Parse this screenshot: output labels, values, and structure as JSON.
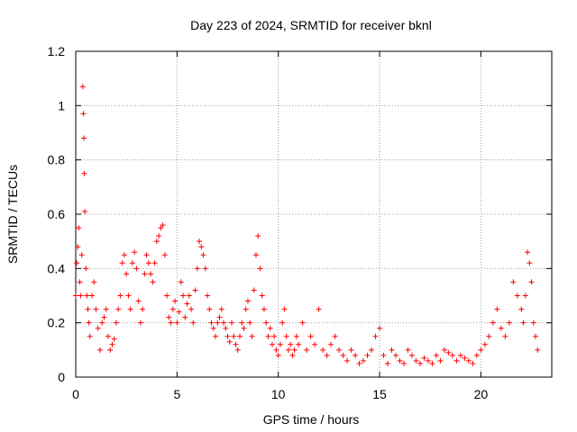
{
  "chart_data": {
    "type": "scatter",
    "title": "Day 223 of 2024, SRMTID for receiver bknl",
    "xlabel": "GPS time / hours",
    "ylabel": "SRMTID / TECUs",
    "xlim": [
      0,
      23.5
    ],
    "ylim": [
      0,
      1.2
    ],
    "x_ticks": [
      0,
      5,
      10,
      15,
      20
    ],
    "y_ticks": [
      0,
      0.2,
      0.4,
      0.6,
      0.8,
      1,
      1.2
    ],
    "x_tick_labels": [
      "0",
      "5",
      "10",
      "15",
      "20"
    ],
    "y_tick_labels": [
      "0",
      "0.2",
      "0.4",
      "0.6",
      "0.8",
      "1",
      "1.2"
    ],
    "grid": true,
    "marker": "+",
    "color": "#ff0000",
    "series": [
      {
        "name": "SRMTID",
        "x": [
          0.0,
          0.05,
          0.1,
          0.15,
          0.2,
          0.25,
          0.3,
          0.35,
          0.38,
          0.4,
          0.42,
          0.45,
          0.5,
          0.55,
          0.6,
          0.65,
          0.7,
          0.8,
          0.9,
          1.0,
          1.1,
          1.2,
          1.3,
          1.4,
          1.5,
          1.6,
          1.7,
          1.8,
          1.9,
          2.0,
          2.1,
          2.2,
          2.3,
          2.4,
          2.5,
          2.6,
          2.7,
          2.8,
          2.9,
          3.0,
          3.1,
          3.2,
          3.3,
          3.4,
          3.5,
          3.6,
          3.7,
          3.8,
          3.9,
          4.0,
          4.1,
          4.2,
          4.3,
          4.4,
          4.5,
          4.6,
          4.7,
          4.8,
          4.9,
          5.0,
          5.1,
          5.2,
          5.3,
          5.4,
          5.5,
          5.6,
          5.7,
          5.8,
          5.9,
          6.0,
          6.1,
          6.2,
          6.3,
          6.4,
          6.5,
          6.6,
          6.7,
          6.8,
          6.9,
          7.0,
          7.1,
          7.2,
          7.3,
          7.4,
          7.5,
          7.6,
          7.7,
          7.8,
          7.9,
          8.0,
          8.1,
          8.2,
          8.3,
          8.4,
          8.5,
          8.6,
          8.7,
          8.8,
          8.9,
          9.0,
          9.1,
          9.2,
          9.3,
          9.4,
          9.5,
          9.6,
          9.7,
          9.8,
          9.9,
          10.0,
          10.1,
          10.2,
          10.3,
          10.4,
          10.5,
          10.6,
          10.7,
          10.8,
          10.9,
          11.0,
          11.2,
          11.4,
          11.6,
          11.8,
          12.0,
          12.2,
          12.4,
          12.6,
          12.8,
          13.0,
          13.2,
          13.4,
          13.6,
          13.8,
          14.0,
          14.2,
          14.4,
          14.6,
          14.8,
          15.0,
          15.2,
          15.4,
          15.6,
          15.8,
          16.0,
          16.2,
          16.4,
          16.6,
          16.8,
          17.0,
          17.2,
          17.4,
          17.6,
          17.8,
          18.0,
          18.2,
          18.4,
          18.6,
          18.8,
          19.0,
          19.2,
          19.4,
          19.6,
          19.8,
          20.0,
          20.2,
          20.4,
          20.6,
          20.8,
          21.0,
          21.2,
          21.4,
          21.6,
          21.8,
          22.0,
          22.1,
          22.2,
          22.3,
          22.4,
          22.5,
          22.6,
          22.7,
          22.8
        ],
        "y": [
          0.3,
          0.42,
          0.48,
          0.55,
          0.35,
          0.3,
          0.45,
          1.07,
          0.97,
          0.88,
          0.75,
          0.61,
          0.4,
          0.3,
          0.25,
          0.2,
          0.15,
          0.3,
          0.35,
          0.25,
          0.18,
          0.1,
          0.2,
          0.22,
          0.25,
          0.15,
          0.1,
          0.12,
          0.14,
          0.2,
          0.25,
          0.3,
          0.42,
          0.45,
          0.38,
          0.3,
          0.25,
          0.42,
          0.46,
          0.4,
          0.28,
          0.2,
          0.25,
          0.38,
          0.45,
          0.42,
          0.38,
          0.35,
          0.42,
          0.5,
          0.52,
          0.55,
          0.56,
          0.45,
          0.3,
          0.22,
          0.2,
          0.25,
          0.28,
          0.2,
          0.24,
          0.35,
          0.3,
          0.22,
          0.27,
          0.3,
          0.25,
          0.2,
          0.32,
          0.4,
          0.5,
          0.48,
          0.45,
          0.4,
          0.3,
          0.25,
          0.2,
          0.18,
          0.15,
          0.2,
          0.22,
          0.25,
          0.2,
          0.18,
          0.15,
          0.13,
          0.2,
          0.15,
          0.12,
          0.1,
          0.15,
          0.2,
          0.18,
          0.25,
          0.28,
          0.2,
          0.15,
          0.32,
          0.45,
          0.52,
          0.4,
          0.3,
          0.25,
          0.2,
          0.15,
          0.18,
          0.12,
          0.15,
          0.1,
          0.08,
          0.12,
          0.2,
          0.25,
          0.15,
          0.1,
          0.12,
          0.08,
          0.1,
          0.15,
          0.12,
          0.2,
          0.1,
          0.15,
          0.12,
          0.25,
          0.1,
          0.08,
          0.12,
          0.15,
          0.1,
          0.08,
          0.06,
          0.1,
          0.08,
          0.05,
          0.06,
          0.08,
          0.1,
          0.15,
          0.18,
          0.08,
          0.05,
          0.1,
          0.08,
          0.06,
          0.05,
          0.1,
          0.08,
          0.06,
          0.05,
          0.07,
          0.06,
          0.05,
          0.08,
          0.06,
          0.1,
          0.09,
          0.08,
          0.06,
          0.08,
          0.07,
          0.06,
          0.05,
          0.08,
          0.1,
          0.12,
          0.15,
          0.2,
          0.25,
          0.18,
          0.15,
          0.2,
          0.35,
          0.3,
          0.25,
          0.2,
          0.3,
          0.46,
          0.42,
          0.35,
          0.2,
          0.15,
          0.1
        ]
      }
    ]
  }
}
